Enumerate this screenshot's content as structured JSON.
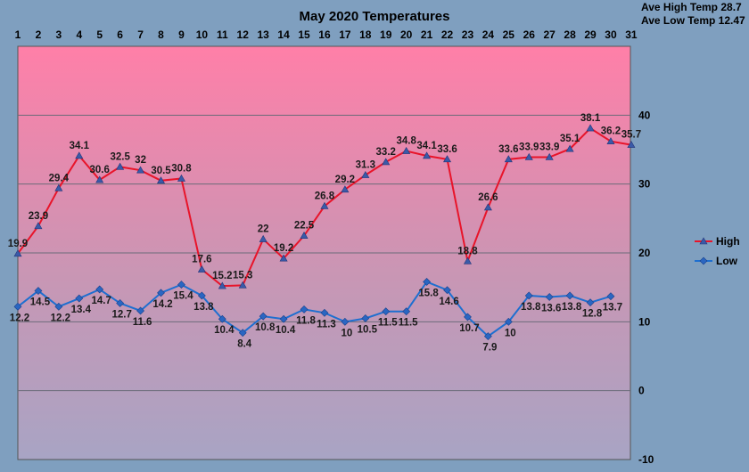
{
  "chart_data": {
    "type": "line",
    "title": "May 2020 Temperatures",
    "stats": [
      "Ave High Temp 28.7",
      "Ave Low Temp 12.47"
    ],
    "x": [
      1,
      2,
      3,
      4,
      5,
      6,
      7,
      8,
      9,
      10,
      11,
      12,
      13,
      14,
      15,
      16,
      17,
      18,
      19,
      20,
      21,
      22,
      23,
      24,
      25,
      26,
      27,
      28,
      29,
      30,
      31
    ],
    "ylim": [
      -10,
      50
    ],
    "yticks": [
      -10,
      0,
      10,
      20,
      30,
      40
    ],
    "grid": true,
    "legend": "right",
    "series": [
      {
        "name": "High",
        "color": "#e8142a",
        "marker": "triangle",
        "values": [
          19.9,
          23.9,
          29.4,
          34.1,
          30.6,
          32.5,
          32,
          30.5,
          30.8,
          17.6,
          15.2,
          15.3,
          22,
          19.2,
          22.5,
          26.8,
          29.2,
          31.3,
          33.2,
          34.8,
          34.1,
          33.6,
          18.8,
          26.6,
          33.6,
          33.9,
          33.9,
          35.1,
          38.1,
          36.2,
          35.7
        ]
      },
      {
        "name": "Low",
        "color": "#1e6fd0",
        "marker": "diamond",
        "values": [
          12.2,
          14.5,
          12.2,
          13.4,
          14.7,
          12.7,
          11.6,
          14.2,
          15.4,
          13.8,
          10.4,
          8.4,
          10.8,
          10.4,
          11.8,
          11.3,
          10,
          10.5,
          11.5,
          11.5,
          15.8,
          14.6,
          10.7,
          7.9,
          10,
          13.8,
          13.6,
          13.8,
          12.8,
          13.7,
          null
        ]
      }
    ]
  }
}
